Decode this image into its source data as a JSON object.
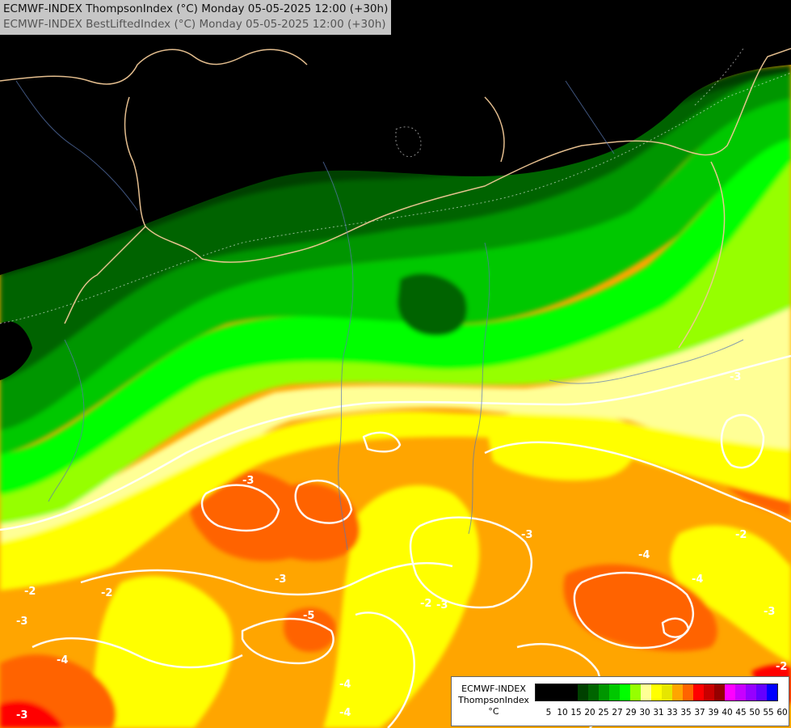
{
  "header": {
    "title_line1": "ECMWF-INDEX ThompsonIndex (°C) Monday 05-05-2025 12:00 (+30h)",
    "title_line2": "ECMWF-INDEX BestLiftedIndex (°C) Monday 05-05-2025 12:00 (+30h)"
  },
  "legend": {
    "line1": "ECMWF-INDEX",
    "line2": "ThompsonIndex",
    "unit": "°C",
    "colors": [
      "#000000",
      "#000000",
      "#000000",
      "#000000",
      "#004000",
      "#006400",
      "#009600",
      "#00c800",
      "#00ff00",
      "#96ff00",
      "#ffff96",
      "#ffff00",
      "#e6e600",
      "#ffa500",
      "#ff6400",
      "#ff0000",
      "#c80000",
      "#960000",
      "#ff00ff",
      "#c800ff",
      "#9600ff",
      "#6400ff",
      "#0000ff"
    ],
    "ticks": [
      "5",
      "10",
      "15",
      "20",
      "25",
      "27",
      "29",
      "30",
      "31",
      "33",
      "35",
      "37",
      "39",
      "40",
      "45",
      "50",
      "55",
      "60"
    ]
  },
  "contour_labels": [
    "-3",
    "-3",
    "-2",
    "-2",
    "-2",
    "-3",
    "-3",
    "-4",
    "-4",
    "-4",
    "-4",
    "-2",
    "-3",
    "-3",
    "-5",
    "-4",
    "-2",
    "-3",
    "-3"
  ]
}
